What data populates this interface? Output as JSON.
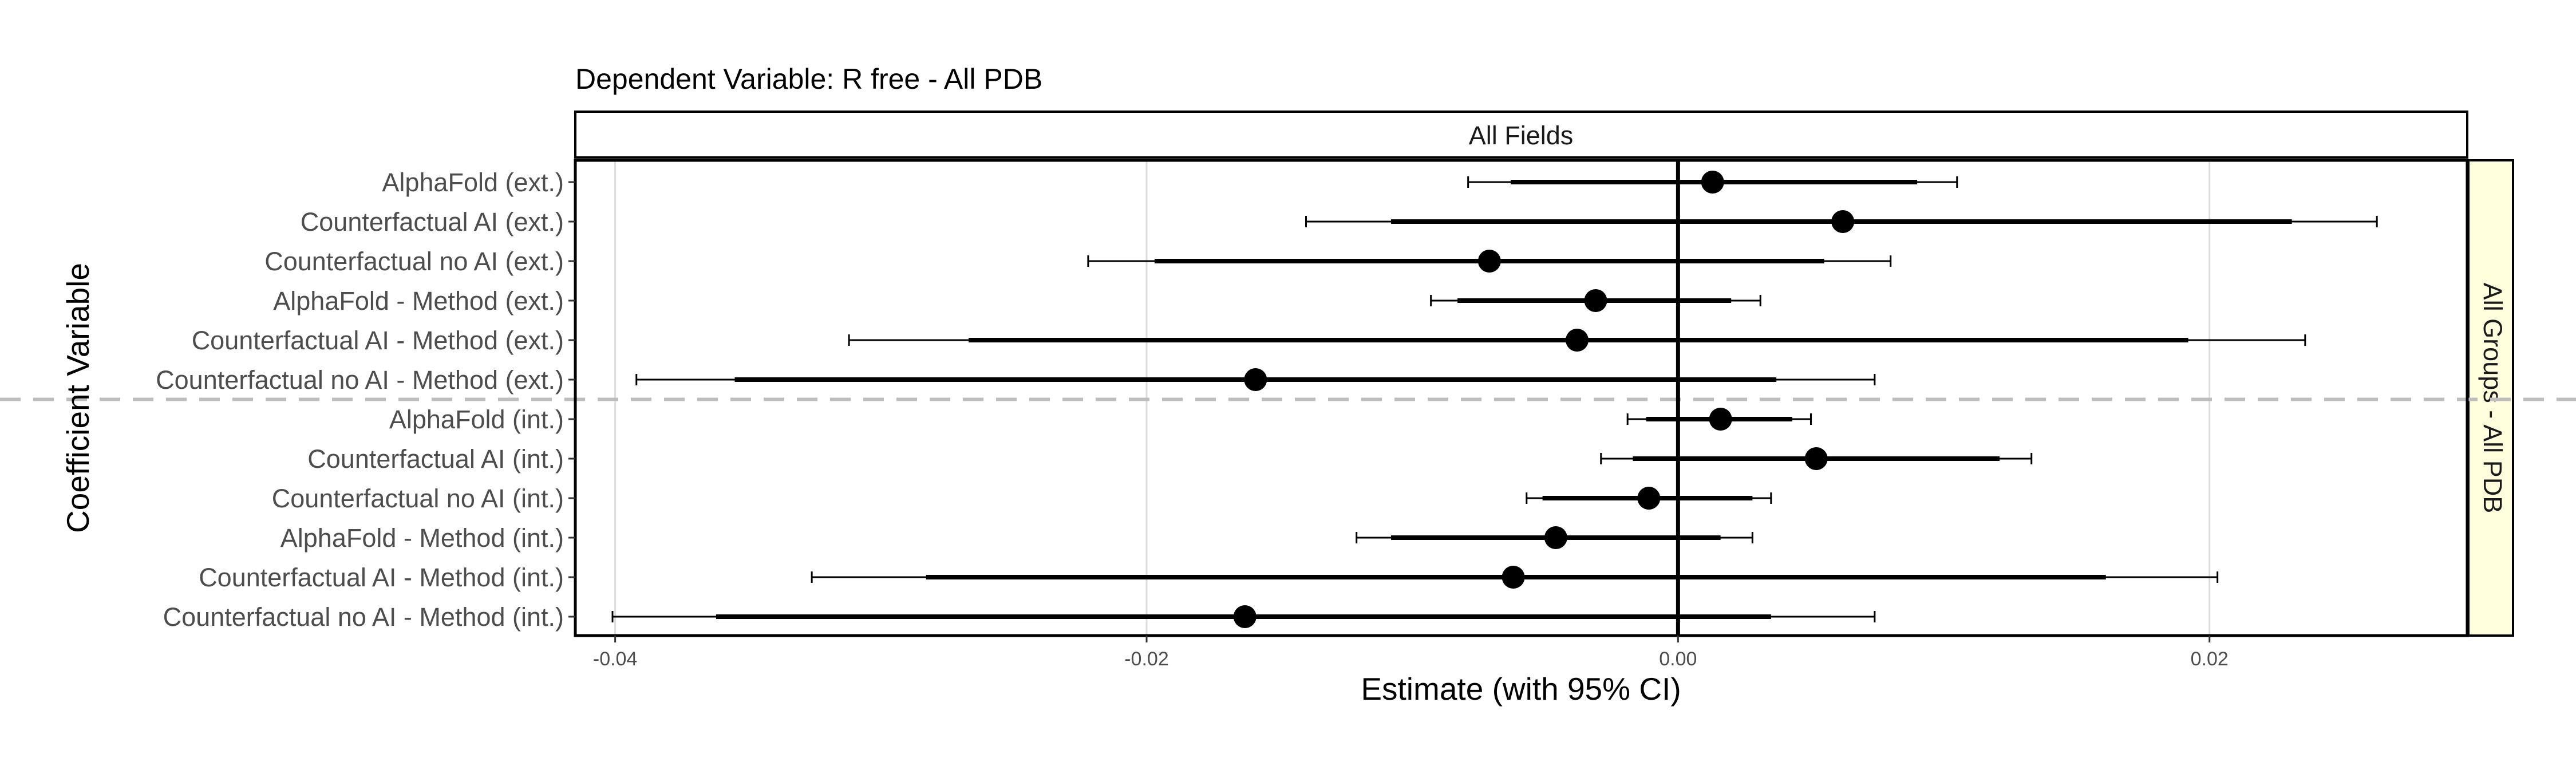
{
  "chart_data": {
    "type": "scatter",
    "subtype": "coefficient-plot",
    "title": "Dependent Variable: R free  -  All PDB",
    "facet_top": "All Fields",
    "facet_right": "All Groups - All PDB",
    "xlabel": "Estimate (with 95% CI)",
    "ylabel": "Coefficient Variable",
    "xlim": [
      -0.0415,
      0.0297
    ],
    "xticks": [
      -0.04,
      -0.02,
      0.0,
      0.02
    ],
    "xtick_labels": [
      "-0.04",
      "-0.02",
      "0.00",
      "0.02"
    ],
    "zero_line": 0.0,
    "group_separator_after_index": 5,
    "grid": "vertical major gridlines",
    "rows": [
      {
        "label": "AlphaFold (ext.)",
        "estimate": 0.0013,
        "ci_inner": [
          -0.0063,
          0.009
        ],
        "ci_outer": [
          -0.0079,
          0.0105
        ]
      },
      {
        "label": "Counterfactual AI (ext.)",
        "estimate": 0.0062,
        "ci_inner": [
          -0.0108,
          0.0231
        ],
        "ci_outer": [
          -0.014,
          0.0263
        ]
      },
      {
        "label": "Counterfactual no AI (ext.)",
        "estimate": -0.0071,
        "ci_inner": [
          -0.0197,
          0.0055
        ],
        "ci_outer": [
          -0.0222,
          0.008
        ]
      },
      {
        "label": "AlphaFold - Method (ext.)",
        "estimate": -0.0031,
        "ci_inner": [
          -0.0083,
          0.002
        ],
        "ci_outer": [
          -0.0093,
          0.0031
        ]
      },
      {
        "label": "Counterfactual AI - Method (ext.)",
        "estimate": -0.0038,
        "ci_inner": [
          -0.0267,
          0.0192
        ],
        "ci_outer": [
          -0.0312,
          0.0236
        ]
      },
      {
        "label": "Counterfactual no AI - Method (ext.)",
        "estimate": -0.0159,
        "ci_inner": [
          -0.0355,
          0.0037
        ],
        "ci_outer": [
          -0.0392,
          0.0074
        ]
      },
      {
        "label": "AlphaFold (int.)",
        "estimate": 0.0016,
        "ci_inner": [
          -0.0012,
          0.0043
        ],
        "ci_outer": [
          -0.0019,
          0.005
        ]
      },
      {
        "label": "Counterfactual AI (int.)",
        "estimate": 0.0052,
        "ci_inner": [
          -0.0017,
          0.0121
        ],
        "ci_outer": [
          -0.0029,
          0.0133
        ]
      },
      {
        "label": "Counterfactual no AI (int.)",
        "estimate": -0.0011,
        "ci_inner": [
          -0.0051,
          0.0028
        ],
        "ci_outer": [
          -0.0057,
          0.0035
        ]
      },
      {
        "label": "AlphaFold - Method (int.)",
        "estimate": -0.0046,
        "ci_inner": [
          -0.0108,
          0.0016
        ],
        "ci_outer": [
          -0.0121,
          0.0028
        ]
      },
      {
        "label": "Counterfactual AI - Method (int.)",
        "estimate": -0.0062,
        "ci_inner": [
          -0.0283,
          0.0161
        ],
        "ci_outer": [
          -0.0326,
          0.0203
        ]
      },
      {
        "label": "Counterfactual no AI - Method (int.)",
        "estimate": -0.0163,
        "ci_inner": [
          -0.0362,
          0.0035
        ],
        "ci_outer": [
          -0.0401,
          0.0074
        ]
      }
    ]
  }
}
